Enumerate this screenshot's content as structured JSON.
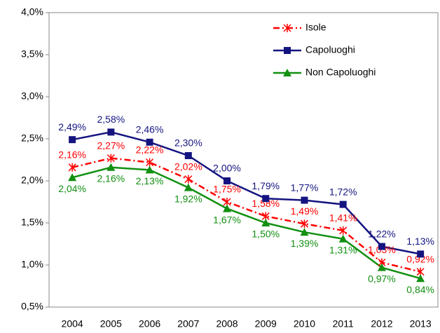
{
  "chart_data": {
    "type": "line",
    "x": [
      2004,
      2005,
      2006,
      2007,
      2008,
      2009,
      2010,
      2011,
      2012,
      2013
    ],
    "xlim": [
      2003.4,
      2013.45
    ],
    "ylim": [
      0.5,
      4.0
    ],
    "yticks": [
      {
        "value": 0.5,
        "label": "0,5%"
      },
      {
        "value": 1.0,
        "label": "1,0%"
      },
      {
        "value": 1.5,
        "label": "1,5%"
      },
      {
        "value": 2.0,
        "label": "2,0%"
      },
      {
        "value": 2.5,
        "label": "2,5%"
      },
      {
        "value": 3.0,
        "label": "3,0%"
      },
      {
        "value": 3.5,
        "label": "3,5%"
      },
      {
        "value": 4.0,
        "label": "4,0%"
      }
    ],
    "grid": false,
    "legend": "upper right",
    "series": [
      {
        "name": "Isole",
        "color": "#ff0000",
        "dash": "dashdot",
        "marker": "asterisk",
        "values": [
          2.16,
          2.27,
          2.22,
          2.02,
          1.75,
          1.58,
          1.49,
          1.41,
          1.03,
          0.92
        ],
        "value_labels": [
          "2,16%",
          "2,27%",
          "2,22%",
          "2,02%",
          "1,75%",
          "1,58%",
          "1,49%",
          "1,41%",
          "1,03%",
          "0,92%"
        ]
      },
      {
        "name": "Capoluoghi",
        "color": "#141480",
        "dash": "solid",
        "marker": "square",
        "values": [
          2.49,
          2.58,
          2.46,
          2.3,
          2.0,
          1.79,
          1.77,
          1.72,
          1.22,
          1.13
        ],
        "value_labels": [
          "2,49%",
          "2,58%",
          "2,46%",
          "2,30%",
          "2,00%",
          "1,79%",
          "1,77%",
          "1,72%",
          "1,22%",
          "1,13%"
        ]
      },
      {
        "name": "Non Capoluoghi",
        "color": "#119011",
        "dash": "solid",
        "marker": "triangle",
        "values": [
          2.04,
          2.16,
          2.13,
          1.92,
          1.67,
          1.5,
          1.39,
          1.31,
          0.97,
          0.84
        ],
        "value_labels": [
          "2,04%",
          "2,16%",
          "2,13%",
          "1,92%",
          "1,67%",
          "1,50%",
          "1,39%",
          "1,31%",
          "0,97%",
          "0,84%"
        ]
      }
    ]
  }
}
